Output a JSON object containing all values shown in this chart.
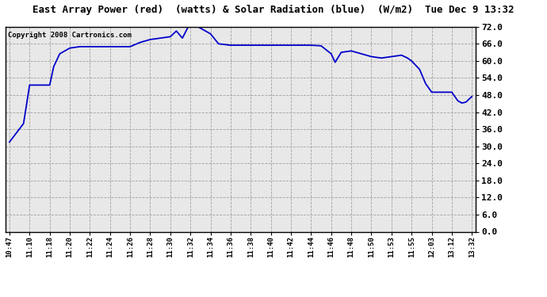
{
  "title": "East Array Power (red)  (watts) & Solar Radiation (blue)  (W/m2)  Tue Dec 9 13:32",
  "copyright": "Copyright 2008 Cartronics.com",
  "line_color": "#0000cc",
  "fig_bg_color": "#ffffff",
  "plot_bg_color": "#e8e8e8",
  "grid_color": "#aaaaaa",
  "ylim": [
    0.0,
    72.0
  ],
  "yticks": [
    0.0,
    6.0,
    12.0,
    18.0,
    24.0,
    30.0,
    36.0,
    42.0,
    48.0,
    54.0,
    60.0,
    66.0,
    72.0
  ],
  "xtick_labels": [
    "10:47",
    "11:10",
    "11:18",
    "11:20",
    "11:22",
    "11:24",
    "11:26",
    "11:28",
    "11:30",
    "11:32",
    "11:34",
    "11:36",
    "11:38",
    "11:40",
    "11:42",
    "11:44",
    "11:46",
    "11:48",
    "11:50",
    "11:53",
    "11:55",
    "12:03",
    "13:12",
    "13:32"
  ],
  "key_points": [
    [
      0.0,
      31.5
    ],
    [
      0.7,
      38.0
    ],
    [
      1.0,
      51.5
    ],
    [
      1.8,
      51.5
    ],
    [
      2.0,
      51.5
    ],
    [
      2.2,
      58.0
    ],
    [
      2.5,
      62.5
    ],
    [
      3.0,
      64.5
    ],
    [
      3.5,
      65.0
    ],
    [
      4.0,
      65.0
    ],
    [
      5.0,
      65.0
    ],
    [
      6.0,
      65.0
    ],
    [
      6.5,
      66.5
    ],
    [
      7.0,
      67.5
    ],
    [
      7.5,
      68.0
    ],
    [
      8.0,
      68.5
    ],
    [
      8.3,
      70.5
    ],
    [
      8.6,
      68.0
    ],
    [
      9.0,
      73.5
    ],
    [
      9.5,
      71.5
    ],
    [
      10.0,
      69.5
    ],
    [
      10.4,
      66.0
    ],
    [
      11.0,
      65.5
    ],
    [
      12.0,
      65.5
    ],
    [
      13.0,
      65.5
    ],
    [
      14.0,
      65.5
    ],
    [
      15.0,
      65.5
    ],
    [
      15.5,
      65.3
    ],
    [
      16.0,
      62.5
    ],
    [
      16.2,
      59.5
    ],
    [
      16.5,
      63.0
    ],
    [
      17.0,
      63.5
    ],
    [
      17.5,
      62.5
    ],
    [
      18.0,
      61.5
    ],
    [
      18.5,
      61.0
    ],
    [
      19.0,
      61.5
    ],
    [
      19.5,
      62.0
    ],
    [
      19.8,
      61.0
    ],
    [
      20.0,
      60.0
    ],
    [
      20.4,
      57.0
    ],
    [
      20.7,
      52.0
    ],
    [
      21.0,
      49.0
    ],
    [
      21.5,
      49.0
    ],
    [
      22.0,
      49.0
    ],
    [
      22.3,
      46.0
    ],
    [
      22.5,
      45.2
    ],
    [
      22.7,
      45.5
    ],
    [
      23.0,
      47.5
    ]
  ]
}
